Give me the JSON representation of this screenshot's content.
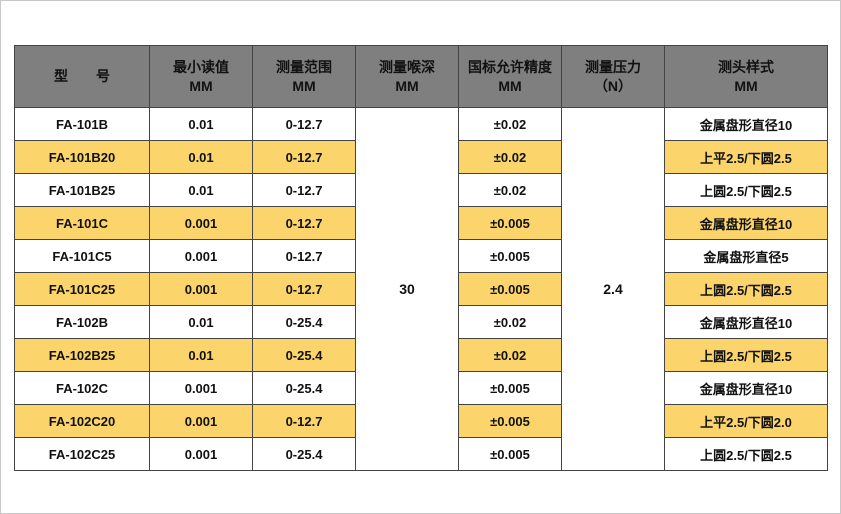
{
  "table": {
    "header": [
      {
        "lines": [
          "型　　号"
        ]
      },
      {
        "lines": [
          "最小读值",
          "MM"
        ]
      },
      {
        "lines": [
          "测量范围",
          "MM"
        ]
      },
      {
        "lines": [
          "测量喉深",
          "MM"
        ]
      },
      {
        "lines": [
          "国标允许精度",
          "MM"
        ]
      },
      {
        "lines": [
          "测量压力",
          "（N）"
        ]
      },
      {
        "lines": [
          "测头样式",
          "MM"
        ]
      }
    ],
    "depth": "30",
    "force": "2.4",
    "rows": [
      [
        "FA-101B",
        "0.01",
        "0-12.7",
        "±0.02",
        "金属盘形直径10"
      ],
      [
        "FA-101B20",
        "0.01",
        "0-12.7",
        "±0.02",
        "上平2.5/下圆2.5"
      ],
      [
        "FA-101B25",
        "0.01",
        "0-12.7",
        "±0.02",
        "上圆2.5/下圆2.5"
      ],
      [
        "FA-101C",
        "0.001",
        "0-12.7",
        "±0.005",
        "金属盘形直径10"
      ],
      [
        "FA-101C5",
        "0.001",
        "0-12.7",
        "±0.005",
        "金属盘形直径5"
      ],
      [
        "FA-101C25",
        "0.001",
        "0-12.7",
        "±0.005",
        "上圆2.5/下圆2.5"
      ],
      [
        "FA-102B",
        "0.01",
        "0-25.4",
        "±0.02",
        "金属盘形直径10"
      ],
      [
        "FA-102B25",
        "0.01",
        "0-25.4",
        "±0.02",
        "上圆2.5/下圆2.5"
      ],
      [
        "FA-102C",
        "0.001",
        "0-25.4",
        "±0.005",
        "金属盘形直径10"
      ],
      [
        "FA-102C20",
        "0.001",
        "0-12.7",
        "±0.005",
        "上平2.5/下圆2.0"
      ],
      [
        "FA-102C25",
        "0.001",
        "0-25.4",
        "±0.005",
        "上圆2.5/下圆2.5"
      ]
    ]
  }
}
